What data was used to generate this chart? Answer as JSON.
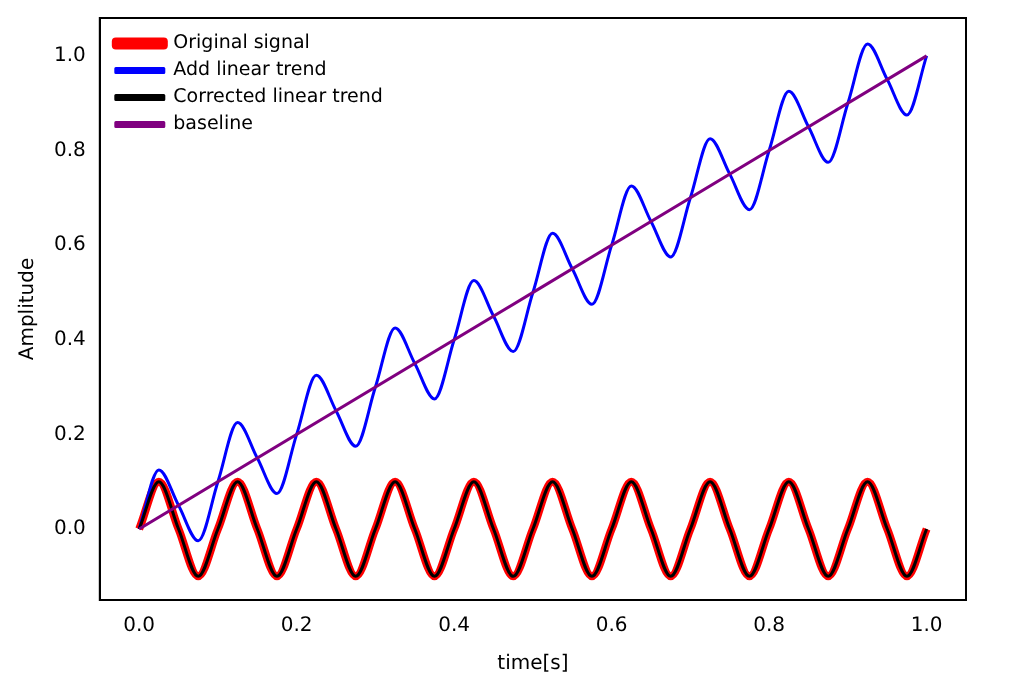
{
  "chart_data": {
    "type": "line",
    "xlabel": "time[s]",
    "ylabel": "Amplitude",
    "x": [
      0,
      0.025,
      0.05,
      0.075,
      0.1,
      0.125,
      0.15,
      0.175,
      0.2,
      0.225,
      0.25,
      0.275,
      0.3,
      0.325,
      0.35,
      0.375,
      0.4,
      0.425,
      0.45,
      0.475,
      0.5,
      0.525,
      0.55,
      0.575,
      0.6,
      0.625,
      0.65,
      0.675,
      0.7,
      0.725,
      0.75,
      0.775,
      0.8,
      0.825,
      0.85,
      0.875,
      0.9,
      0.925,
      0.95,
      0.975,
      1
    ],
    "series": [
      {
        "name": "Original signal",
        "color": "#ff0000",
        "values": [
          0,
          0.1,
          0,
          -0.1,
          0,
          0.1,
          0,
          -0.1,
          0,
          0.1,
          0,
          -0.1,
          0,
          0.1,
          0,
          -0.1,
          0,
          0.1,
          0,
          -0.1,
          0,
          0.1,
          0,
          -0.1,
          0,
          0.1,
          0,
          -0.1,
          0,
          0.1,
          0,
          -0.1,
          0,
          0.1,
          0,
          -0.1,
          0,
          0.1,
          0,
          -0.1,
          0
        ]
      },
      {
        "name": "Add linear trend",
        "color": "#0000ff",
        "values": [
          0,
          0.125,
          0.05,
          -0.025,
          0.1,
          0.225,
          0.15,
          0.075,
          0.2,
          0.325,
          0.25,
          0.175,
          0.3,
          0.425,
          0.35,
          0.275,
          0.4,
          0.525,
          0.45,
          0.375,
          0.5,
          0.625,
          0.55,
          0.475,
          0.6,
          0.725,
          0.65,
          0.575,
          0.7,
          0.825,
          0.75,
          0.675,
          0.8,
          0.925,
          0.85,
          0.775,
          0.9,
          1.025,
          0.95,
          0.875,
          1.0
        ]
      },
      {
        "name": "Corrected linear trend",
        "color": "#000000",
        "values": [
          0,
          0.1,
          0,
          -0.1,
          0,
          0.1,
          0,
          -0.1,
          0,
          0.1,
          0,
          -0.1,
          0,
          0.1,
          0,
          -0.1,
          0,
          0.1,
          0,
          -0.1,
          0,
          0.1,
          0,
          -0.1,
          0,
          0.1,
          0,
          -0.1,
          0,
          0.1,
          0,
          -0.1,
          0,
          0.1,
          0,
          -0.1,
          0,
          0.1,
          0,
          -0.1,
          0
        ]
      },
      {
        "name": "baseline",
        "color": "#800080",
        "x": [
          0,
          1
        ],
        "values": [
          0,
          1
        ]
      }
    ],
    "xlim": [
      -0.05,
      1.05
    ],
    "xticks": [
      {
        "value": 0,
        "label": "0.0"
      },
      0.2,
      0.4,
      0.6,
      0.8,
      {
        "value": 1,
        "label": "1.0"
      }
    ],
    "ylim": [
      -0.15,
      1.08
    ],
    "yticks": [
      {
        "value": 0,
        "label": "0.0"
      },
      0.2,
      0.4,
      0.6,
      0.8,
      {
        "value": 1,
        "label": "1.0"
      }
    ],
    "grid": false,
    "legend": "top left",
    "line_style": "solid",
    "marker": "none"
  }
}
